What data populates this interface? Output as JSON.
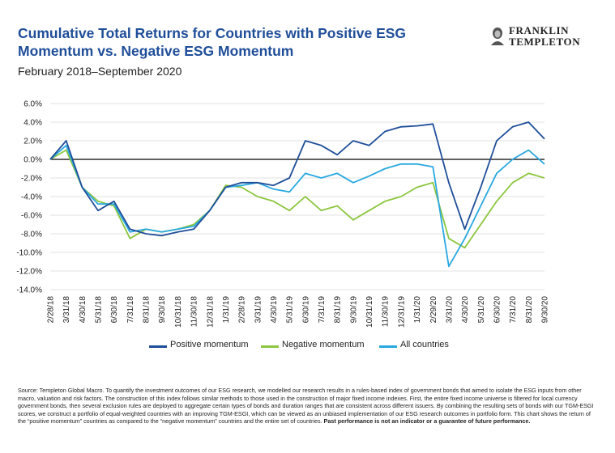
{
  "header": {
    "title": "Cumulative Total Returns for Countries with Positive ESG Momentum vs. Negative ESG Momentum",
    "subtitle": "February 2018–September 2020"
  },
  "logo": {
    "line1": "FRANKLIN",
    "line2": "TEMPLETON"
  },
  "legend": {
    "positive": "Positive momentum",
    "negative": "Negative momentum",
    "all": "All countries"
  },
  "colors": {
    "positive": "#1f4e99",
    "negative": "#8cc63f",
    "all": "#29a8e0",
    "zero_line": "#000000",
    "grid": "#d9d9d9"
  },
  "footnote": {
    "text": "Source: Templeton Global Macro. To quantify the investment outcomes of our ESG research, we modelled our research results in a rules-based index of government bonds that aimed to isolate the ESG inputs from other macro, valuation and risk factors. The construction of this index follows similar methods to those used in the construction of major fixed income indexes. First, the entire fixed income universe is filtered for local currency government bonds, then several exclusion rules are deployed to aggregate certain types of bonds and duration ranges that are consistent across different issuers. By combining the resulting sets of bonds with our TGM-ESGI scores, we construct a portfolio of equal-weighted countries with an improving TGM-ESGI, which can be viewed as an unbiased implementation of our ESG research outcomes in portfolio form. This chart shows the return of the “positive momentum” countries as compared to the “negative momentum” countries and the entire set of countries. ",
    "bold": "Past performance is not an indicator or a guarantee of future performance."
  },
  "chart_data": {
    "type": "line",
    "ylim": [
      -14,
      6
    ],
    "yticks": [
      -14,
      -12,
      -10,
      -8,
      -6,
      -4,
      -2,
      0,
      2,
      4,
      6
    ],
    "ytick_labels": [
      "-14.0%",
      "-12.0%",
      "-10.0%",
      "-8.0%",
      "-6.0%",
      "-4.0%",
      "-2.0%",
      "0.0%",
      "2.0%",
      "4.0%",
      "6.0%"
    ],
    "x": [
      "2/28/18",
      "3/31/18",
      "4/30/18",
      "5/31/18",
      "6/30/18",
      "7/31/18",
      "8/31/18",
      "9/30/18",
      "10/31/18",
      "11/30/18",
      "12/31/18",
      "1/31/19",
      "2/28/19",
      "3/31/19",
      "4/30/19",
      "5/31/19",
      "6/30/19",
      "7/31/19",
      "8/31/19",
      "9/30/19",
      "10/31/19",
      "11/30/19",
      "12/31/19",
      "1/31/20",
      "2/29/20",
      "3/31/20",
      "4/30/20",
      "5/31/20",
      "6/30/20",
      "7/31/20",
      "8/31/20",
      "9/30/20"
    ],
    "grid": "horizontal",
    "legend_position": "bottom",
    "series": [
      {
        "name": "Positive momentum",
        "values": [
          0.0,
          2.0,
          -3.0,
          -5.5,
          -4.5,
          -7.5,
          -8.0,
          -8.2,
          -7.8,
          -7.5,
          -5.5,
          -3.0,
          -2.5,
          -2.5,
          -2.8,
          -2.0,
          2.0,
          1.5,
          0.5,
          2.0,
          1.5,
          3.0,
          3.5,
          3.6,
          3.8,
          -2.5,
          -7.5,
          -3.0,
          2.0,
          3.5,
          4.0,
          2.2
        ]
      },
      {
        "name": "Negative momentum",
        "values": [
          0.0,
          1.0,
          -3.0,
          -4.5,
          -5.0,
          -8.5,
          -7.5,
          -7.8,
          -7.5,
          -7.0,
          -5.5,
          -2.8,
          -3.0,
          -4.0,
          -4.5,
          -5.5,
          -4.0,
          -5.5,
          -5.0,
          -6.5,
          -5.5,
          -4.5,
          -4.0,
          -3.0,
          -2.5,
          -8.5,
          -9.5,
          -7.0,
          -4.5,
          -2.5,
          -1.5,
          -2.0
        ]
      },
      {
        "name": "All countries",
        "values": [
          0.0,
          1.5,
          -3.0,
          -4.8,
          -4.8,
          -7.8,
          -7.5,
          -7.8,
          -7.5,
          -7.2,
          -5.5,
          -3.0,
          -2.8,
          -2.5,
          -3.2,
          -3.5,
          -1.5,
          -2.0,
          -1.5,
          -2.5,
          -1.8,
          -1.0,
          -0.5,
          -0.5,
          -0.8,
          -11.5,
          -8.5,
          -5.0,
          -1.5,
          0.0,
          1.0,
          -0.5
        ]
      }
    ]
  }
}
